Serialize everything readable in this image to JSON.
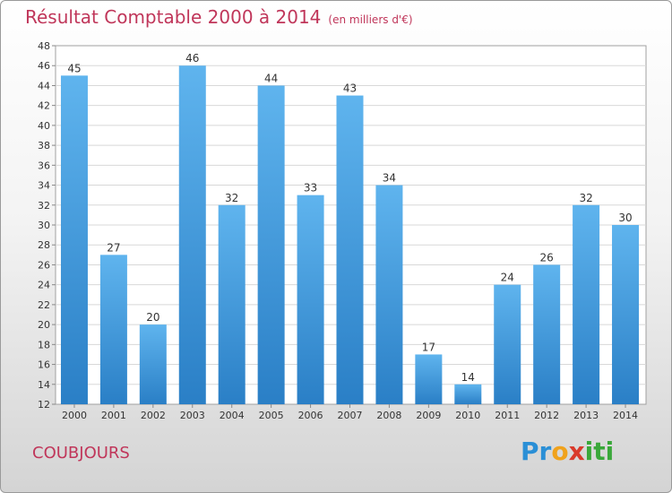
{
  "title": {
    "main": "Résultat Comptable 2000 à 2014",
    "unit": "(en milliers d'€)"
  },
  "commune": "COUBJOURS",
  "logo": {
    "letters": [
      "P",
      "r",
      "o",
      "x",
      "i",
      "t",
      "i"
    ],
    "colors": [
      "#2a8fd6",
      "#2a8fd6",
      "#f0a21c",
      "#d93a2b",
      "#3aa83a",
      "#3aa83a",
      "#3aa83a"
    ]
  },
  "colors": {
    "bar_top": "#5fb4ee",
    "bar_bottom": "#2a7fc6",
    "accent": "#c0365a"
  },
  "chart_data": {
    "type": "bar",
    "title": "Résultat Comptable 2000 à 2014",
    "xlabel": "",
    "ylabel": "",
    "categories": [
      "2000",
      "2001",
      "2002",
      "2003",
      "2004",
      "2005",
      "2006",
      "2007",
      "2008",
      "2009",
      "2010",
      "2011",
      "2012",
      "2013",
      "2014"
    ],
    "values": [
      45,
      27,
      20,
      46,
      32,
      44,
      33,
      43,
      34,
      17,
      14,
      24,
      26,
      32,
      30
    ],
    "ylim": [
      12,
      48
    ],
    "yticks": [
      12,
      14,
      16,
      18,
      20,
      22,
      24,
      26,
      28,
      30,
      32,
      34,
      36,
      38,
      40,
      42,
      44,
      46,
      48
    ],
    "grid": true
  }
}
